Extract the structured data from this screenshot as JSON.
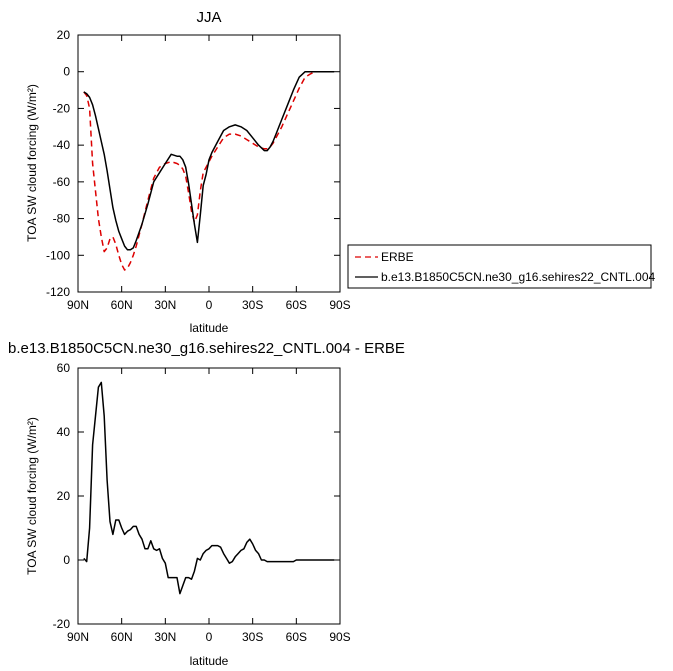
{
  "chart_data": [
    {
      "type": "line",
      "title": "JJA",
      "xlabel": "latitude",
      "ylabel": "TOA SW cloud forcing (W/m²)",
      "x_ticks": [
        "90N",
        "60N",
        "30N",
        "0",
        "30S",
        "60S",
        "90S"
      ],
      "xlim": [
        90,
        -90
      ],
      "ylim": [
        -120,
        20
      ],
      "y_ticks": [
        20,
        0,
        -20,
        -40,
        -60,
        -80,
        -100,
        -120
      ],
      "grid": false,
      "legend_position": "right-outside",
      "series": [
        {
          "name": "ERBE",
          "color": "#dd0000",
          "dash": "dashed",
          "x": [
            86,
            84,
            82,
            80,
            78,
            76,
            74,
            72,
            70,
            68,
            66,
            64,
            62,
            60,
            58,
            56,
            54,
            52,
            50,
            46,
            42,
            38,
            34,
            30,
            26,
            22,
            20,
            18,
            16,
            14,
            12,
            10,
            8,
            6,
            4,
            2,
            0,
            -2,
            -6,
            -10,
            -14,
            -18,
            -22,
            -26,
            -30,
            -34,
            -38,
            -40,
            -42,
            -44,
            -46,
            -50,
            -54,
            -58,
            -62,
            -66,
            -70,
            -74,
            -78,
            -82,
            -86
          ],
          "y": [
            -11,
            -13,
            -20,
            -50,
            -65,
            -80,
            -90,
            -98,
            -96,
            -91,
            -90,
            -94,
            -100,
            -105,
            -108,
            -107,
            -104,
            -100,
            -95,
            -83,
            -70,
            -58,
            -52,
            -50,
            -49,
            -50,
            -51,
            -53,
            -57,
            -66,
            -76,
            -82,
            -78,
            -65,
            -55,
            -52,
            -49,
            -46,
            -41,
            -36,
            -34,
            -34,
            -35,
            -37,
            -39,
            -41,
            -42,
            -42,
            -41,
            -39,
            -36,
            -30,
            -23,
            -16,
            -9,
            -3,
            -1,
            0,
            0,
            0,
            0
          ]
        },
        {
          "name": "b.e13.B1850C5CN.ne30_g16.sehires22_CNTL.004",
          "color": "#000000",
          "dash": "solid",
          "x": [
            86,
            84,
            82,
            80,
            78,
            76,
            74,
            72,
            70,
            68,
            66,
            64,
            62,
            60,
            58,
            56,
            54,
            52,
            50,
            46,
            42,
            38,
            34,
            30,
            26,
            22,
            20,
            18,
            16,
            14,
            12,
            10,
            8,
            6,
            4,
            2,
            0,
            -2,
            -6,
            -10,
            -14,
            -18,
            -22,
            -26,
            -30,
            -34,
            -38,
            -40,
            -42,
            -44,
            -46,
            -50,
            -54,
            -58,
            -62,
            -66,
            -70,
            -74,
            -78,
            -82,
            -86
          ],
          "y": [
            -11,
            -12,
            -14,
            -18,
            -24,
            -31,
            -38,
            -45,
            -54,
            -64,
            -74,
            -81,
            -87,
            -91,
            -95,
            -97,
            -97,
            -96,
            -92,
            -83,
            -72,
            -60,
            -55,
            -50,
            -45,
            -46,
            -46,
            -48,
            -52,
            -61,
            -72,
            -83,
            -93,
            -78,
            -62,
            -56,
            -48,
            -44,
            -38,
            -32,
            -30,
            -29,
            -30,
            -32,
            -36,
            -40,
            -43,
            -43,
            -41,
            -38,
            -34,
            -26,
            -18,
            -10,
            -3,
            0,
            0,
            0,
            0,
            0,
            0
          ]
        }
      ]
    },
    {
      "type": "line",
      "title": "b.e13.B1850C5CN.ne30_g16.sehires22_CNTL.004 - ERBE",
      "xlabel": "latitude",
      "ylabel": "TOA SW cloud forcing (W/m²)",
      "x_ticks": [
        "90N",
        "60N",
        "30N",
        "0",
        "30S",
        "60S",
        "90S"
      ],
      "xlim": [
        90,
        -90
      ],
      "ylim": [
        -20,
        60
      ],
      "y_ticks": [
        60,
        40,
        20,
        0,
        -20
      ],
      "grid": false,
      "series": [
        {
          "color": "#000000",
          "dash": "solid",
          "x": [
            86,
            84,
            82,
            80,
            78,
            76,
            74,
            72,
            70,
            68,
            66,
            64,
            62,
            60,
            58,
            56,
            54,
            52,
            50,
            48,
            46,
            44,
            42,
            40,
            38,
            36,
            34,
            32,
            30,
            28,
            26,
            24,
            22,
            20,
            18,
            16,
            14,
            12,
            10,
            8,
            6,
            4,
            2,
            0,
            -2,
            -4,
            -6,
            -8,
            -10,
            -12,
            -14,
            -16,
            -18,
            -20,
            -22,
            -24,
            -26,
            -28,
            -30,
            -32,
            -34,
            -36,
            -38,
            -40,
            -42,
            -44,
            -46,
            -48,
            -50,
            -52,
            -54,
            -56,
            -58,
            -60,
            -62,
            -64,
            -66,
            -68,
            -70,
            -72,
            -74,
            -76,
            -78,
            -80,
            -82,
            -84,
            -86
          ],
          "y": [
            0.5,
            -0.5,
            10,
            36,
            45,
            54,
            55.5,
            45,
            25,
            12,
            8,
            12.5,
            12.5,
            10,
            8,
            9,
            9.5,
            10.5,
            10.5,
            8,
            6.5,
            3.5,
            3.5,
            6,
            3.5,
            3,
            3.5,
            0.5,
            -1,
            -5.5,
            -5.5,
            -5.5,
            -5.5,
            -10.5,
            -8,
            -5.5,
            -5.5,
            -6,
            -3.5,
            0.5,
            0,
            2,
            3,
            3.5,
            4.5,
            4.5,
            4.5,
            4,
            2,
            0.5,
            -1,
            -0.5,
            1,
            2,
            3,
            3.5,
            5.5,
            6.5,
            5,
            3,
            2,
            0,
            0,
            -0.5,
            -0.5,
            -0.5,
            -0.5,
            -0.5,
            -0.5,
            -0.5,
            -0.5,
            -0.5,
            -0.5,
            0,
            0,
            0,
            0,
            0,
            0,
            0,
            0,
            0,
            0,
            0,
            0,
            0,
            0
          ]
        }
      ]
    }
  ]
}
